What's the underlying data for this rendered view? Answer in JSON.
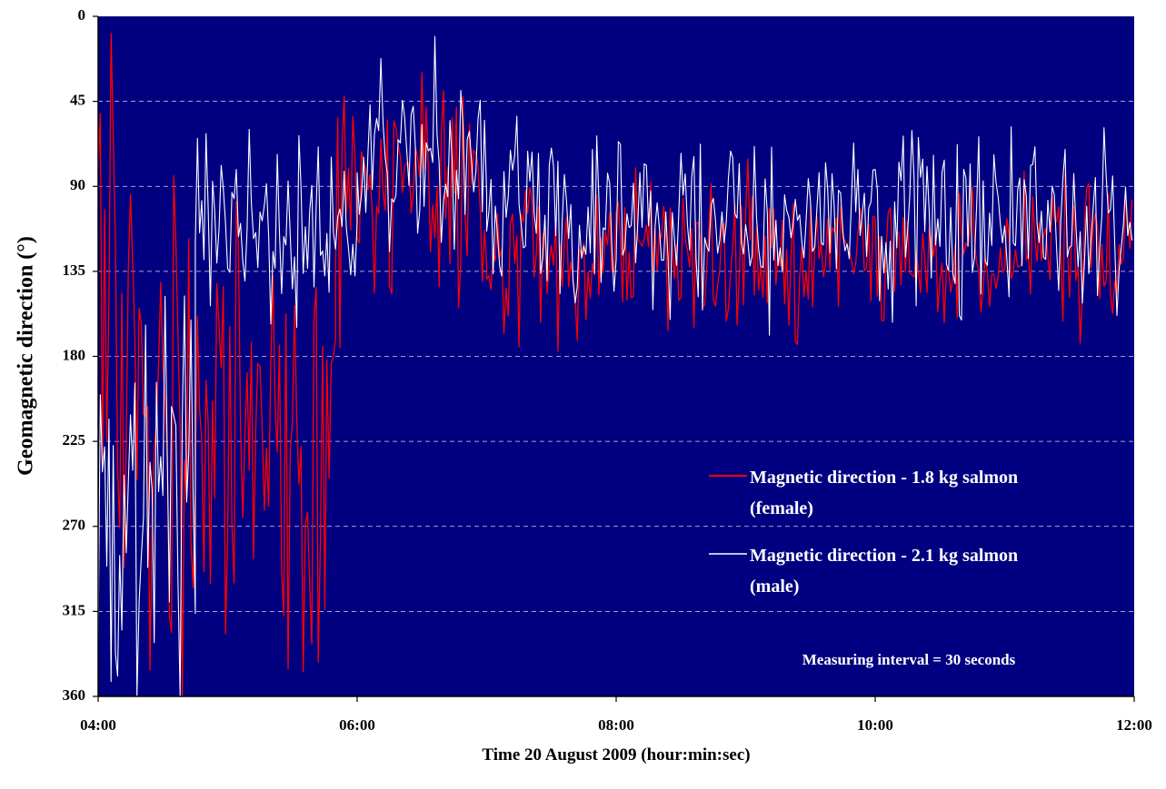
{
  "chart_data": {
    "type": "line",
    "title": "",
    "xlabel": "Time  20 August 2009 (hour:min:sec)",
    "ylabel": "Geomagnetic direction (°)",
    "x_range_hours": [
      4,
      12
    ],
    "y_range": [
      0,
      360
    ],
    "y_inverted": true,
    "y_ticks": [
      "0",
      "45",
      "90",
      "135",
      "180",
      "225",
      "270",
      "315",
      "360"
    ],
    "x_ticks": [
      "04:00",
      "06:00",
      "08:00",
      "10:00",
      "12:00"
    ],
    "grid": "horizontal dashed",
    "legend_position": "right-middle",
    "measuring_interval_seconds": 30,
    "annotation": "Measuring interval = 30 seconds",
    "plot_background": "#000080",
    "series": [
      {
        "name": "Magnetic direction - 1.8 kg salmon (female)",
        "name_line1": "Magnetic direction - 1.8 kg salmon",
        "name_line2": "(female)",
        "color": "#ff0000",
        "segments": [
          {
            "start": "04:00",
            "end": "05:50",
            "approx_direction_deg": 200,
            "spread_deg": 170
          },
          {
            "start": "05:50",
            "end": "07:00",
            "approx_direction_deg": 95,
            "spread_deg": 80
          },
          {
            "start": "07:00",
            "end": "12:00",
            "approx_direction_deg": 125,
            "spread_deg": 55
          }
        ]
      },
      {
        "name": "Magnetic direction - 2.1 kg salmon (male)",
        "name_line1": "Magnetic direction - 2.1 kg salmon",
        "name_line2": "(male)",
        "color": "#ffffff",
        "segments": [
          {
            "start": "04:00",
            "end": "04:45",
            "approx_direction_deg": 250,
            "spread_deg": 150
          },
          {
            "start": "04:45",
            "end": "06:00",
            "approx_direction_deg": 110,
            "spread_deg": 70
          },
          {
            "start": "06:00",
            "end": "07:00",
            "approx_direction_deg": 80,
            "spread_deg": 70
          },
          {
            "start": "07:00",
            "end": "12:00",
            "approx_direction_deg": 110,
            "spread_deg": 60
          }
        ]
      }
    ]
  }
}
